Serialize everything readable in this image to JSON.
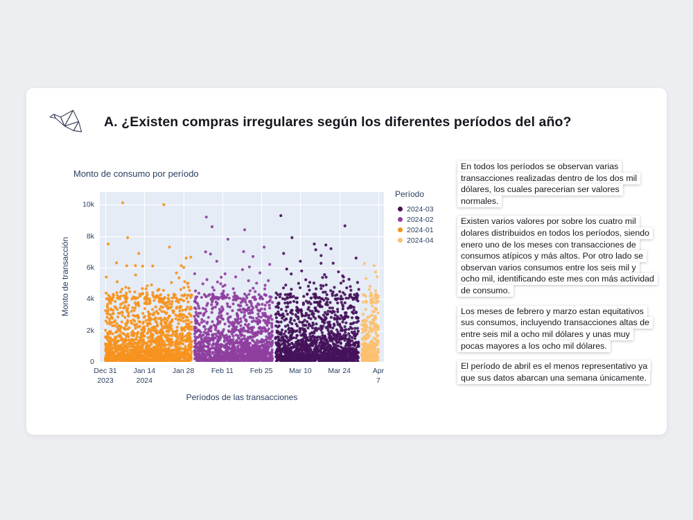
{
  "slide": {
    "title": "A. ¿Existen compras irregulares según los diferentes períodos del año?"
  },
  "chart_data": {
    "type": "scatter",
    "title": "Monto de consumo por período",
    "xlabel": "Períodos de las transacciones",
    "ylabel": "Monto de transacción",
    "legend_title": "Período",
    "plot_bg": "#e5ecf6",
    "grid_color": "#ffffff",
    "axis_text_color": "#2a3f5f",
    "x_axis": {
      "domain_days": [
        -2,
        100
      ],
      "tick_days": [
        0,
        14,
        28,
        42,
        56,
        70,
        84,
        98
      ],
      "tick_labels": [
        "Dec 31\n2023",
        "Jan 14\n2024",
        "Jan 28",
        "Feb 11",
        "Feb 25",
        "Mar 10",
        "Mar 24",
        "Apr 7"
      ]
    },
    "y_axis": {
      "domain": [
        0,
        10800
      ],
      "tick_values": [
        0,
        2000,
        4000,
        6000,
        8000,
        10000
      ],
      "tick_labels": [
        "0",
        "2k",
        "4k",
        "6k",
        "8k",
        "10k"
      ]
    },
    "distribution": {
      "bulk_weight": 0.66,
      "mid_weight": 0.295,
      "mid_max": 4300,
      "high_base": 4000,
      "high_mean": 650,
      "y_floor": 20,
      "y_cap": 10300
    },
    "series": [
      {
        "name": "2024-03",
        "color": "#45125a",
        "day_range": [
          61,
          91
        ],
        "count": 1450,
        "y_mean": 800,
        "outliers": [
          [
            63,
            9300
          ],
          [
            86,
            8650
          ],
          [
            67,
            7900
          ],
          [
            75,
            7500
          ],
          [
            81,
            7200
          ],
          [
            64,
            6900
          ],
          [
            90,
            6600
          ],
          [
            70,
            6400
          ]
        ]
      },
      {
        "name": "2024-02",
        "color": "#8f3f9f",
        "day_range": [
          32,
          60
        ],
        "count": 1400,
        "y_mean": 800,
        "outliers": [
          [
            50,
            8400
          ],
          [
            44,
            7800
          ],
          [
            57,
            7300
          ],
          [
            36,
            7000
          ],
          [
            53,
            6700
          ],
          [
            40,
            6400
          ],
          [
            59,
            6200
          ]
        ]
      },
      {
        "name": "2024-01",
        "color": "#f6921e",
        "day_range": [
          0,
          31
        ],
        "count": 1480,
        "y_mean": 820,
        "outliers": [
          [
            21,
            10000
          ],
          [
            8,
            7900
          ],
          [
            1,
            7500
          ],
          [
            23,
            7300
          ],
          [
            12,
            6900
          ],
          [
            29,
            6600
          ],
          [
            4,
            6300
          ],
          [
            17,
            6100
          ]
        ]
      },
      {
        "name": "2024-04",
        "color": "#fcc06f",
        "day_range": [
          92,
          98
        ],
        "count": 290,
        "y_mean": 780,
        "outliers": [
          [
            93,
            6250
          ],
          [
            95,
            4800
          ],
          [
            97,
            4300
          ]
        ]
      }
    ]
  },
  "notes": {
    "paragraphs": [
      "En todos los períodos se observan varias transacciones realizadas dentro de los dos mil dólares, los cuales parecerian ser valores normales.",
      "Existen varios valores por sobre los cuatro mil dolares distribuidos en todos los períodos, siendo enero uno de los meses con transacciones de consumos atípicos y más altos. Por otro lado se observan varios consumos entre los seis mil y ocho mil, identificando este mes con más actividad de consumo.",
      "Los meses de febrero y marzo estan equitativos sus consumos, incluyendo transacciones altas de entre seis mil a ocho mil dólares y unas muy pocas mayores a los ocho mil dólares.",
      "El período de abril es el menos representativo ya que sus datos abarcan una semana únicamente."
    ]
  }
}
